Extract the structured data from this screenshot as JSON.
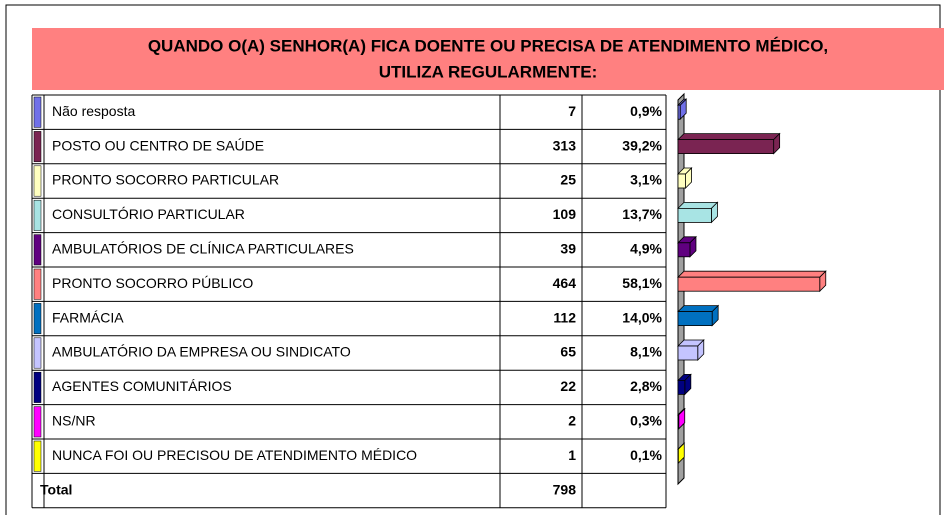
{
  "chart_data": {
    "type": "bar",
    "title_lines": [
      "QUANDO O(A) SENHOR(A) FICA DOENTE OU PRECISA DE ATENDIMENTO MÉDICO,",
      "UTILIZA REGULARMENTE:"
    ],
    "categories": [
      "Não resposta",
      "POSTO OU CENTRO DE SAÚDE",
      "PRONTO SOCORRO PARTICULAR",
      "CONSULTÓRIO PARTICULAR",
      "AMBULATÓRIOS DE CLÍNICA PARTICULARES",
      "PRONTO SOCORRO PÚBLICO",
      "FARMÁCIA",
      "AMBULATÓRIO DA EMPRESA OU SINDICATO",
      "AGENTES COMUNITÁRIOS",
      "NS/NR",
      "NUNCA FOI OU PRECISOU DE ATENDIMENTO MÉDICO"
    ],
    "counts": [
      7,
      313,
      25,
      109,
      39,
      464,
      112,
      65,
      22,
      2,
      1
    ],
    "values": [
      0.9,
      39.2,
      3.1,
      13.7,
      4.9,
      58.1,
      14.0,
      8.1,
      2.8,
      0.3,
      0.1
    ],
    "value_labels": [
      "0,9%",
      "39,2%",
      "3,1%",
      "13,7%",
      "4,9%",
      "58,1%",
      "14,0%",
      "8,1%",
      "2,8%",
      "0,3%",
      "0,1%"
    ],
    "colors": [
      "#7070e8",
      "#7a2452",
      "#ffffc0",
      "#a8e4e4",
      "#600080",
      "#ff8080",
      "#0070c0",
      "#c4c4ff",
      "#000080",
      "#ff00ff",
      "#ffff00"
    ],
    "total_label": "Total",
    "total": 798
  }
}
